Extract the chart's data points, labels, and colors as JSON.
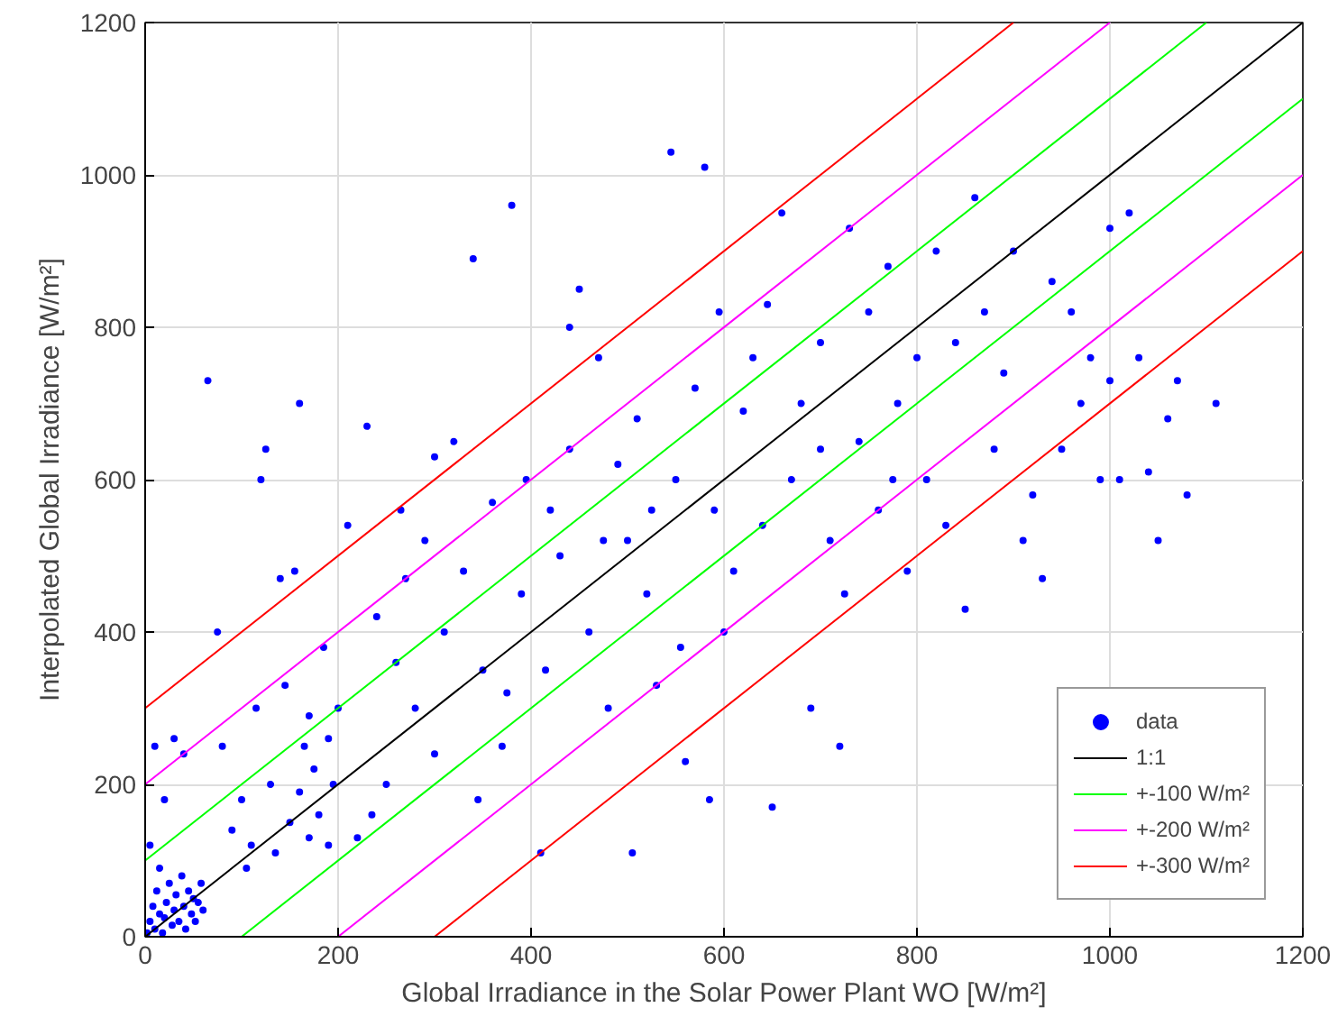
{
  "chart_data": {
    "type": "scatter",
    "xlabel": "Global Irradiance in the Solar Power Plant WO [W/m²]",
    "ylabel": "Interpolated Global Irradiance [W/m²]",
    "xlim": [
      0,
      1200
    ],
    "ylim": [
      0,
      1200
    ],
    "xticks": [
      0,
      200,
      400,
      600,
      800,
      1000,
      1200
    ],
    "yticks": [
      0,
      200,
      400,
      600,
      800,
      1000,
      1200
    ],
    "grid": true,
    "legend": "bottom right",
    "series": [
      {
        "name": "data",
        "marker": "circle",
        "color": "#0000ff",
        "x": [
          2,
          5,
          8,
          10,
          12,
          15,
          18,
          20,
          22,
          25,
          28,
          30,
          32,
          35,
          38,
          40,
          42,
          45,
          48,
          50,
          52,
          55,
          58,
          60,
          5,
          10,
          20,
          30,
          15,
          40,
          65,
          75,
          80,
          90,
          100,
          110,
          115,
          120,
          125,
          130,
          140,
          150,
          155,
          160,
          165,
          170,
          175,
          180,
          185,
          190,
          195,
          200,
          105,
          135,
          145,
          160,
          170,
          190,
          220,
          230,
          240,
          250,
          260,
          270,
          280,
          290,
          300,
          310,
          320,
          330,
          340,
          350,
          360,
          370,
          380,
          390,
          395,
          210,
          235,
          265,
          300,
          345,
          375,
          410,
          420,
          430,
          440,
          450,
          460,
          470,
          480,
          490,
          500,
          505,
          510,
          520,
          530,
          545,
          550,
          560,
          570,
          580,
          590,
          600,
          415,
          440,
          475,
          525,
          555,
          585,
          595,
          610,
          620,
          630,
          640,
          650,
          660,
          670,
          680,
          690,
          700,
          710,
          720,
          730,
          740,
          750,
          760,
          770,
          780,
          790,
          800,
          645,
          700,
          725,
          775,
          810,
          820,
          830,
          840,
          850,
          860,
          870,
          880,
          890,
          900,
          910,
          920,
          930,
          940,
          950,
          960,
          970,
          980,
          990,
          1000,
          1010,
          1020,
          1040,
          1050,
          1060,
          1070,
          1080,
          1110,
          1030,
          1000
        ],
        "values": [
          5,
          20,
          40,
          10,
          60,
          30,
          5,
          25,
          45,
          70,
          15,
          35,
          55,
          20,
          80,
          40,
          10,
          60,
          30,
          50,
          20,
          45,
          70,
          35,
          120,
          250,
          180,
          260,
          90,
          240,
          730,
          400,
          250,
          140,
          180,
          120,
          300,
          600,
          640,
          200,
          470,
          150,
          480,
          700,
          250,
          130,
          220,
          160,
          380,
          260,
          200,
          300,
          90,
          110,
          330,
          190,
          290,
          120,
          130,
          670,
          420,
          200,
          360,
          470,
          300,
          520,
          240,
          400,
          650,
          480,
          890,
          350,
          570,
          250,
          960,
          450,
          600,
          540,
          160,
          560,
          630,
          180,
          320,
          110,
          560,
          500,
          800,
          850,
          400,
          760,
          300,
          620,
          520,
          110,
          680,
          450,
          330,
          1030,
          600,
          230,
          720,
          1010,
          560,
          400,
          350,
          640,
          520,
          560,
          380,
          180,
          820,
          480,
          690,
          760,
          540,
          170,
          950,
          600,
          700,
          300,
          780,
          520,
          250,
          930,
          650,
          820,
          560,
          880,
          700,
          480,
          760,
          830,
          640,
          450,
          600,
          600,
          900,
          540,
          780,
          430,
          970,
          820,
          640,
          740,
          900,
          520,
          580,
          470,
          860,
          640,
          820,
          700,
          760,
          600,
          730,
          600,
          950,
          610,
          520,
          680,
          730,
          580,
          700,
          760,
          930
        ]
      },
      {
        "name": "1:1",
        "type": "line",
        "color": "#000000",
        "line_style": "solid",
        "x": [
          0,
          1200
        ],
        "values": [
          0,
          1200
        ]
      },
      {
        "name": "+-100 W/m²",
        "type": "line",
        "color": "#00ff00",
        "line_style": "solid",
        "x": [
          0,
          1100
        ],
        "values": [
          100,
          1200
        ]
      },
      {
        "type": "line",
        "color": "#00ff00",
        "line_style": "solid",
        "x": [
          100,
          1200
        ],
        "values": [
          0,
          1100
        ]
      },
      {
        "name": "+-200 W/m²",
        "type": "line",
        "color": "#ff00ff",
        "line_style": "solid",
        "x": [
          0,
          1000
        ],
        "values": [
          200,
          1200
        ]
      },
      {
        "type": "line",
        "color": "#ff00ff",
        "line_style": "solid",
        "x": [
          200,
          1200
        ],
        "values": [
          0,
          1000
        ]
      },
      {
        "name": "+-300 W/m²",
        "type": "line",
        "color": "#ff0000",
        "line_style": "solid",
        "x": [
          0,
          900
        ],
        "values": [
          300,
          1200
        ]
      },
      {
        "type": "line",
        "color": "#ff0000",
        "line_style": "solid",
        "x": [
          300,
          1200
        ],
        "values": [
          0,
          900
        ]
      }
    ]
  }
}
